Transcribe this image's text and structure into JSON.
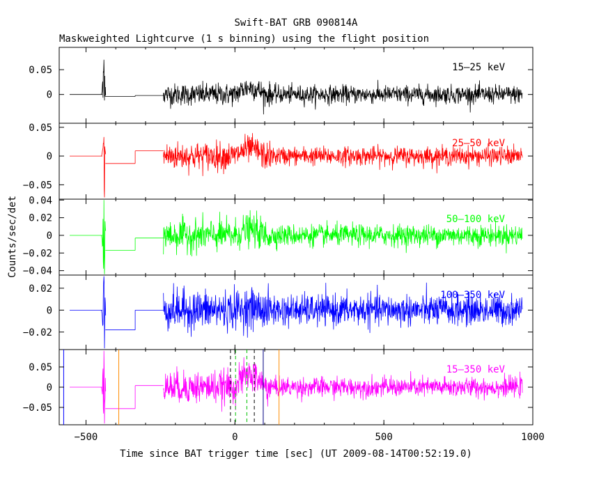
{
  "title": "Swift-BAT GRB 090814A",
  "subtitle": "Maskweighted Lightcurve (1 s binning) using the flight position",
  "xlabel": "Time since BAT trigger time [sec] (UT 2009-08-14T00:52:19.0)",
  "ylabel": "Counts/sec/det",
  "chart_data": {
    "type": "line",
    "xlim": [
      -590,
      1000
    ],
    "xticks": [
      -500,
      0,
      500,
      1000
    ],
    "xtick_labels": [
      "−500",
      "0",
      "500",
      "1000"
    ],
    "binning_sec": 1,
    "panels": [
      {
        "band": "15–25 keV",
        "color": "#000000",
        "ylim": [
          -0.058,
          0.095
        ],
        "yticks": [
          0,
          0.05
        ],
        "ytick_labels": [
          "0",
          "0.05"
        ],
        "baseline_segments": [
          {
            "x": [
              -555,
              -445
            ],
            "y": 0.0
          },
          {
            "x": [
              -435,
              -335
            ],
            "y": -0.004
          },
          {
            "x": [
              -335,
              -240
            ],
            "y": -0.002
          }
        ],
        "spike": {
          "x": -440,
          "max": 0.07,
          "min": -0.012
        },
        "noise_segments": [
          {
            "x": [
              -240,
              0
            ],
            "sigma": 0.011
          },
          {
            "x": [
              0,
              120
            ],
            "sigma": 0.012,
            "mean_bump": 0.014
          },
          {
            "x": [
              120,
              965
            ],
            "sigma": 0.009
          }
        ]
      },
      {
        "band": "25–50 keV",
        "color": "#ff0000",
        "ylim": [
          -0.075,
          0.057
        ],
        "yticks": [
          -0.05,
          0,
          0.05
        ],
        "ytick_labels": [
          "−0.05",
          "0",
          "0.05"
        ],
        "baseline_segments": [
          {
            "x": [
              -555,
              -445
            ],
            "y": 0.0
          },
          {
            "x": [
              -435,
              -335
            ],
            "y": -0.013
          },
          {
            "x": [
              -335,
              -240
            ],
            "y": 0.009
          }
        ],
        "spike": {
          "x": -440,
          "max": 0.033,
          "min": -0.072
        },
        "noise_segments": [
          {
            "x": [
              -240,
              0
            ],
            "sigma": 0.012
          },
          {
            "x": [
              0,
              120
            ],
            "sigma": 0.012,
            "mean_bump": 0.012
          },
          {
            "x": [
              120,
              965
            ],
            "sigma": 0.008
          }
        ]
      },
      {
        "band": "50–100 keV",
        "color": "#00ff00",
        "ylim": [
          -0.045,
          0.041
        ],
        "yticks": [
          -0.04,
          -0.02,
          0,
          0.02,
          0.04
        ],
        "ytick_labels": [
          "−0.04",
          "−0.02",
          "0",
          "0.02",
          "0.04"
        ],
        "baseline_segments": [
          {
            "x": [
              -555,
              -445
            ],
            "y": 0.0
          },
          {
            "x": [
              -435,
              -335
            ],
            "y": -0.017
          },
          {
            "x": [
              -335,
              -240
            ],
            "y": -0.003
          }
        ],
        "spike": {
          "x": -440,
          "max": 0.04,
          "min": -0.044
        },
        "noise_segments": [
          {
            "x": [
              -240,
              0
            ],
            "sigma": 0.009
          },
          {
            "x": [
              0,
              120
            ],
            "sigma": 0.009,
            "mean_bump": 0.006
          },
          {
            "x": [
              120,
              965
            ],
            "sigma": 0.006
          }
        ]
      },
      {
        "band": "100–350 keV",
        "color": "#0000ff",
        "ylim": [
          -0.036,
          0.032
        ],
        "yticks": [
          -0.02,
          0,
          0.02
        ],
        "ytick_labels": [
          "−0.02",
          "0",
          "0.02"
        ],
        "baseline_segments": [
          {
            "x": [
              -555,
              -445
            ],
            "y": 0.0
          },
          {
            "x": [
              -435,
              -335
            ],
            "y": -0.018
          },
          {
            "x": [
              -335,
              -240
            ],
            "y": 0.0
          }
        ],
        "spike": {
          "x": -440,
          "max": 0.031,
          "min": -0.035
        },
        "noise_segments": [
          {
            "x": [
              -240,
              0
            ],
            "sigma": 0.009
          },
          {
            "x": [
              0,
              120
            ],
            "sigma": 0.009,
            "mean_bump": 0.002
          },
          {
            "x": [
              120,
              965
            ],
            "sigma": 0.007
          }
        ]
      },
      {
        "band": "15–350 keV",
        "color": "#ff00ff",
        "ylim": [
          -0.093,
          0.093
        ],
        "yticks": [
          -0.05,
          0,
          0.05
        ],
        "ytick_labels": [
          "−0.05",
          "0",
          "0.05"
        ],
        "baseline_segments": [
          {
            "x": [
              -555,
              -445
            ],
            "y": 0.0
          },
          {
            "x": [
              -435,
              -335
            ],
            "y": -0.053
          },
          {
            "x": [
              -335,
              -240
            ],
            "y": 0.004
          }
        ],
        "spike": {
          "x": -440,
          "max": 0.09,
          "min": -0.09
        },
        "noise_segments": [
          {
            "x": [
              -240,
              0
            ],
            "sigma": 0.02
          },
          {
            "x": [
              0,
              120
            ],
            "sigma": 0.02,
            "mean_bump": 0.03
          },
          {
            "x": [
              120,
              965
            ],
            "sigma": 0.012
          }
        ],
        "vertical_markers": [
          {
            "x": -575,
            "color": "#0000ff",
            "style": "solid"
          },
          {
            "x": -390,
            "color": "#ff8c00",
            "style": "solid"
          },
          {
            "x": -15,
            "color": "#000000",
            "style": "dashed"
          },
          {
            "x": 2,
            "color": "#00c000",
            "style": "dashed"
          },
          {
            "x": 40,
            "color": "#00c000",
            "style": "dashed"
          },
          {
            "x": 65,
            "color": "#000000",
            "style": "dashed"
          },
          {
            "x": 95,
            "color": "#000080",
            "style": "solid"
          },
          {
            "x": 148,
            "color": "#ff8c00",
            "style": "solid"
          }
        ]
      }
    ]
  }
}
